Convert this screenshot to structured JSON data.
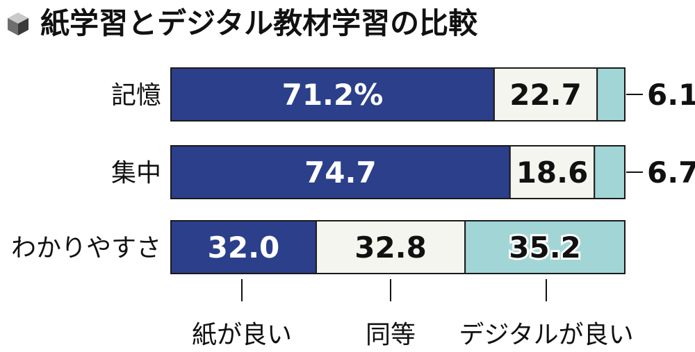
{
  "title": "紙学習とデジタル教材学習の比較",
  "chart_data": {
    "type": "bar",
    "stacked": true,
    "orientation": "horizontal",
    "title": "紙学習とデジタル教材学習の比較",
    "categories": [
      "記憶",
      "集中",
      "わかりやすさ"
    ],
    "series": [
      {
        "name": "紙が良い",
        "values": [
          71.2,
          74.7,
          32.0
        ],
        "labels": [
          "71.2%",
          "74.7",
          "32.0"
        ],
        "color": "#2b3f8a"
      },
      {
        "name": "同等",
        "values": [
          22.7,
          18.6,
          32.8
        ],
        "labels": [
          "22.7",
          "18.6",
          "32.8"
        ],
        "color": "#f5f5ef"
      },
      {
        "name": "デジタルが良い",
        "values": [
          6.1,
          6.7,
          35.2
        ],
        "labels": [
          "6.1",
          "6.7",
          "35.2"
        ],
        "color": "#a2d5d6"
      }
    ],
    "xlim": [
      0,
      100
    ],
    "grid": false,
    "legend": "bottom"
  }
}
